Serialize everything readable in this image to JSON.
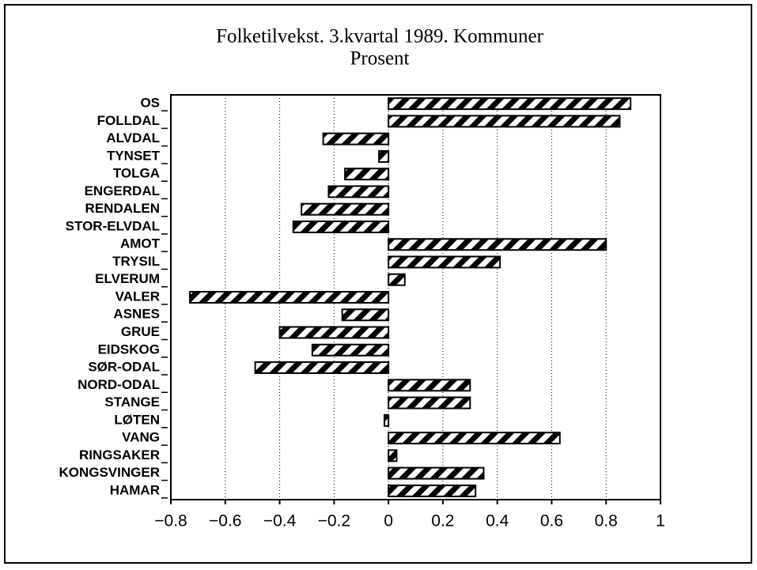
{
  "chart_data": {
    "type": "barh",
    "title": "Folketilvekst. 3.kvartal 1989. Kommuner",
    "subtitle": "Prosent",
    "categories": [
      "OS",
      "FOLLDAL",
      "ALVDAL",
      "TYNSET",
      "TOLGA",
      "ENGERDAL",
      "RENDALEN",
      "STOR-ELVDAL",
      "AMOT",
      "TRYSIL",
      "ELVERUM",
      "VALER",
      "ASNES",
      "GRUE",
      "EIDSKOG",
      "SØR-ODAL",
      "NORD-ODAL",
      "STANGE",
      "LØTEN",
      "VANG",
      "RINGSAKER",
      "KONGSVINGER",
      "HAMAR"
    ],
    "values": [
      0.89,
      0.85,
      -0.24,
      -0.035,
      -0.16,
      -0.22,
      -0.32,
      -0.35,
      0.8,
      0.41,
      0.06,
      -0.73,
      -0.17,
      -0.4,
      -0.28,
      -0.49,
      0.3,
      0.3,
      -0.015,
      0.63,
      0.03,
      0.35,
      0.32
    ],
    "color": "#000000",
    "xlim": [
      -0.8,
      1
    ],
    "xticks": [
      {
        "value": -0.8,
        "label": "−0.8"
      },
      {
        "value": -0.6,
        "label": "−0.6"
      },
      {
        "value": -0.4,
        "label": "−0.4"
      },
      {
        "value": -0.2,
        "label": "−0.2"
      },
      0,
      0.2,
      0.4,
      0.6,
      0.8,
      1
    ],
    "grid": true
  }
}
